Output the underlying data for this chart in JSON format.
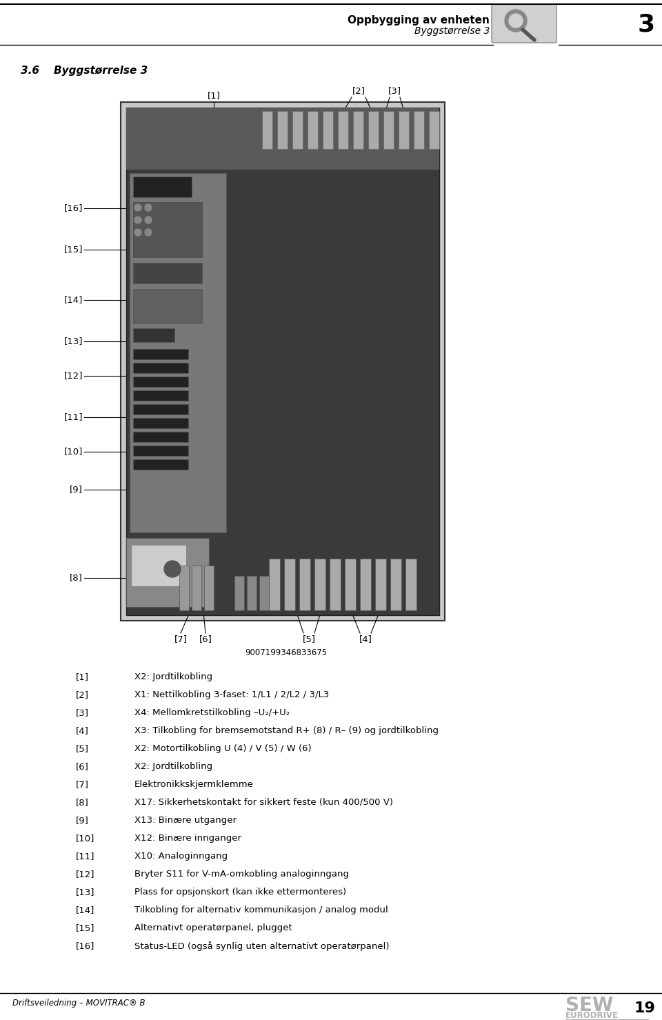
{
  "page_bg": "#ffffff",
  "header": {
    "title_bold": "Oppbygging av enheten",
    "title_italic": "Byggstørrelse 3",
    "chapter_num": "3"
  },
  "section_label": "3.6    Byggstørrelse 3",
  "serial_number": "9007199346833675",
  "legend": [
    {
      "num": "[1]",
      "text": "X2: Jordtilkobling"
    },
    {
      "num": "[2]",
      "text": "X1: Nettilkobling 3-faset: 1/L1 / 2/L2 / 3/L3"
    },
    {
      "num": "[3]",
      "text": "X4: Mellomkretstilkobling –U₂/+U₂"
    },
    {
      "num": "[4]",
      "text": "X3: Tilkobling for bremsemotstand R+ (8) / R– (9) og jordtilkobling"
    },
    {
      "num": "[5]",
      "text": "X2: Motortilkobling U (4) / V (5) / W (6)"
    },
    {
      "num": "[6]",
      "text": "X2: Jordtilkobling"
    },
    {
      "num": "[7]",
      "text": "Elektronikkskjermklemme"
    },
    {
      "num": "[8]",
      "text": "X17: Sikkerhetskontakt for sikkert feste (kun 400/500 V)"
    },
    {
      "num": "[9]",
      "text": "X13: Binære utganger"
    },
    {
      "num": "[10]",
      "text": "X12: Binære innganger"
    },
    {
      "num": "[11]",
      "text": "X10: Analoginngang"
    },
    {
      "num": "[12]",
      "text": "Bryter S11 for V-mA-omkobling analoginngang"
    },
    {
      "num": "[13]",
      "text": "Plass for opsjonskort (kan ikke ettermonteres)"
    },
    {
      "num": "[14]",
      "text": "Tilkobling for alternativ kommunikasjon / analog modul"
    },
    {
      "num": "[15]",
      "text": "Alternativt operatørpanel, plugget"
    },
    {
      "num": "[16]",
      "text": "Status-LED (også synlig uten alternativt operatørpanel)"
    }
  ],
  "footer": {
    "left_text": "Driftsveiledning – MOVITRAC® B",
    "right_num": "19"
  }
}
